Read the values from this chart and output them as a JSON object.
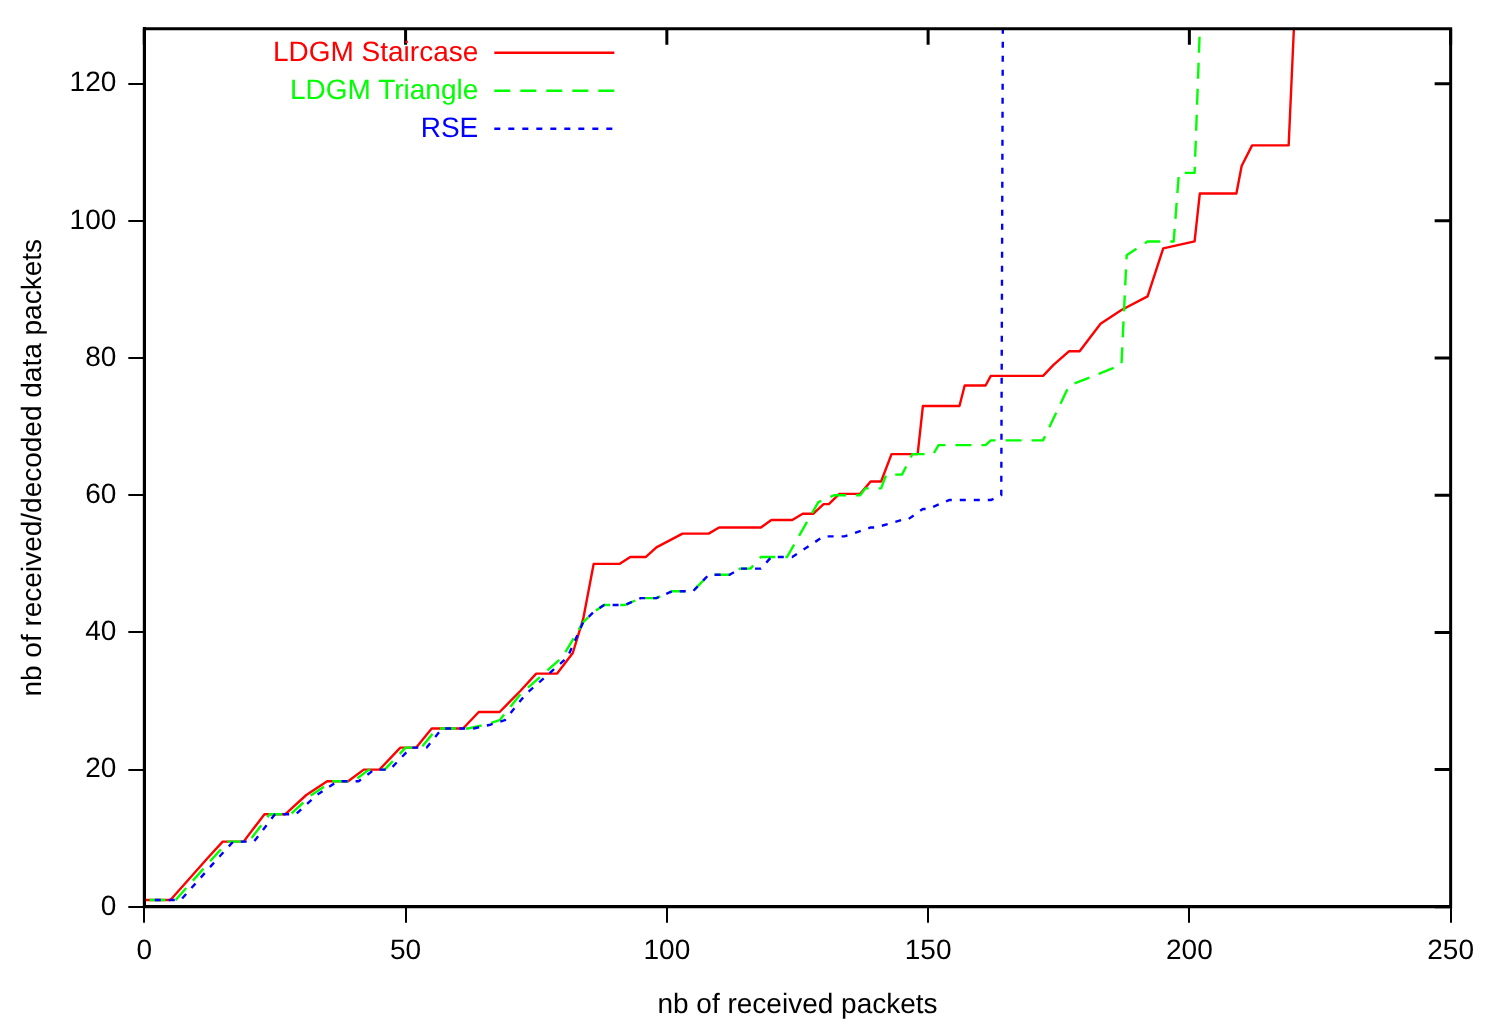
{
  "chart_data": {
    "type": "line",
    "xlabel": "nb of received packets",
    "ylabel": "nb of received/decoded data packets",
    "xlim": [
      0,
      250
    ],
    "xticks": [
      0,
      50,
      100,
      150,
      200,
      250
    ],
    "ylim": [
      0,
      128
    ],
    "yticks": [
      0,
      20,
      40,
      60,
      80,
      100,
      120
    ],
    "grid": false,
    "legend": "top left",
    "marker": "none",
    "series": [
      {
        "name": "LDGM Staircase",
        "color": "#ff0000",
        "line_style": "solid",
        "x": [
          0,
          5,
          12,
          15,
          19,
          23,
          27,
          31,
          35,
          39,
          42,
          45,
          49,
          52,
          55,
          61,
          64,
          68,
          72,
          75,
          79,
          82,
          84,
          86,
          91,
          93,
          96,
          98,
          103,
          108,
          110,
          118,
          120,
          124,
          126,
          128,
          130,
          131,
          133,
          137,
          139,
          141,
          143,
          148,
          149,
          156,
          157,
          161,
          162,
          172,
          174,
          177,
          179,
          183,
          187,
          192,
          195,
          201,
          202,
          209,
          210,
          212,
          219,
          220
        ],
        "values": [
          1,
          1,
          7,
          9.5,
          9.5,
          13.5,
          13.5,
          16.3,
          18.3,
          18.3,
          20,
          20,
          23.2,
          23.2,
          26,
          26,
          28.4,
          28.4,
          31.5,
          34,
          34,
          37,
          42,
          50,
          50,
          51,
          51,
          52.4,
          54.4,
          54.4,
          55.3,
          55.3,
          56.4,
          56.4,
          57.3,
          57.3,
          58.7,
          58.7,
          60.2,
          60.2,
          62,
          62,
          66,
          66,
          73,
          73,
          76,
          76,
          77.4,
          77.4,
          79,
          81,
          81,
          85,
          87,
          89,
          96,
          97,
          104,
          104,
          108,
          111,
          111,
          128
        ]
      },
      {
        "name": "LDGM Triangle",
        "color": "#00ff00",
        "line_style": "dashed",
        "x": [
          1,
          6,
          13,
          16,
          20,
          24,
          28,
          32,
          36,
          40,
          43,
          46,
          50,
          53,
          56,
          62,
          65,
          68,
          72,
          75,
          80,
          84,
          86,
          88,
          92,
          95,
          98,
          101,
          105,
          108,
          112,
          114,
          116,
          118,
          123,
          129,
          132,
          137,
          138,
          141,
          142,
          145,
          147,
          151,
          152,
          161,
          162,
          172,
          177,
          182,
          187,
          188,
          192,
          197,
          198,
          201,
          202
        ],
        "values": [
          1,
          1,
          7,
          9.5,
          9.5,
          13.5,
          13.5,
          16.3,
          18.3,
          18.3,
          20,
          20,
          23.2,
          23.2,
          26,
          26,
          26.5,
          27.2,
          31,
          33,
          36.4,
          41.5,
          43,
          44,
          44,
          45,
          45,
          46,
          46,
          48.4,
          48.4,
          49.3,
          49.3,
          51,
          51,
          59,
          60,
          60,
          61,
          61,
          63,
          63,
          66,
          66,
          67.3,
          67.3,
          68,
          68,
          76,
          77.5,
          79,
          95,
          97,
          97,
          107,
          107,
          128
        ]
      },
      {
        "name": "RSE",
        "color": "#0000ff",
        "line_style": "dotted",
        "x": [
          2,
          7,
          14,
          17,
          21,
          25,
          29,
          33,
          37,
          41,
          44,
          47,
          51,
          54,
          57,
          63,
          66,
          69,
          73,
          76,
          81,
          84,
          86,
          88,
          92,
          95,
          98,
          101,
          105,
          108,
          112,
          114,
          118,
          120,
          124,
          130,
          134,
          139,
          140,
          145,
          146,
          149,
          150,
          154,
          155,
          162,
          164,
          164.3
        ],
        "values": [
          1,
          1,
          7,
          9.5,
          9.5,
          13.5,
          13.5,
          16.3,
          18.3,
          18.3,
          20,
          20,
          23.2,
          23.2,
          26,
          26,
          26.5,
          27.2,
          31,
          33,
          36.4,
          41.5,
          43,
          44,
          44,
          45,
          45,
          46,
          46,
          48.4,
          48.4,
          49.3,
          49.3,
          51,
          51,
          54,
          54,
          55.3,
          55.3,
          56.4,
          56.4,
          58,
          58,
          59.3,
          59.3,
          59.3,
          60,
          128
        ]
      }
    ]
  }
}
